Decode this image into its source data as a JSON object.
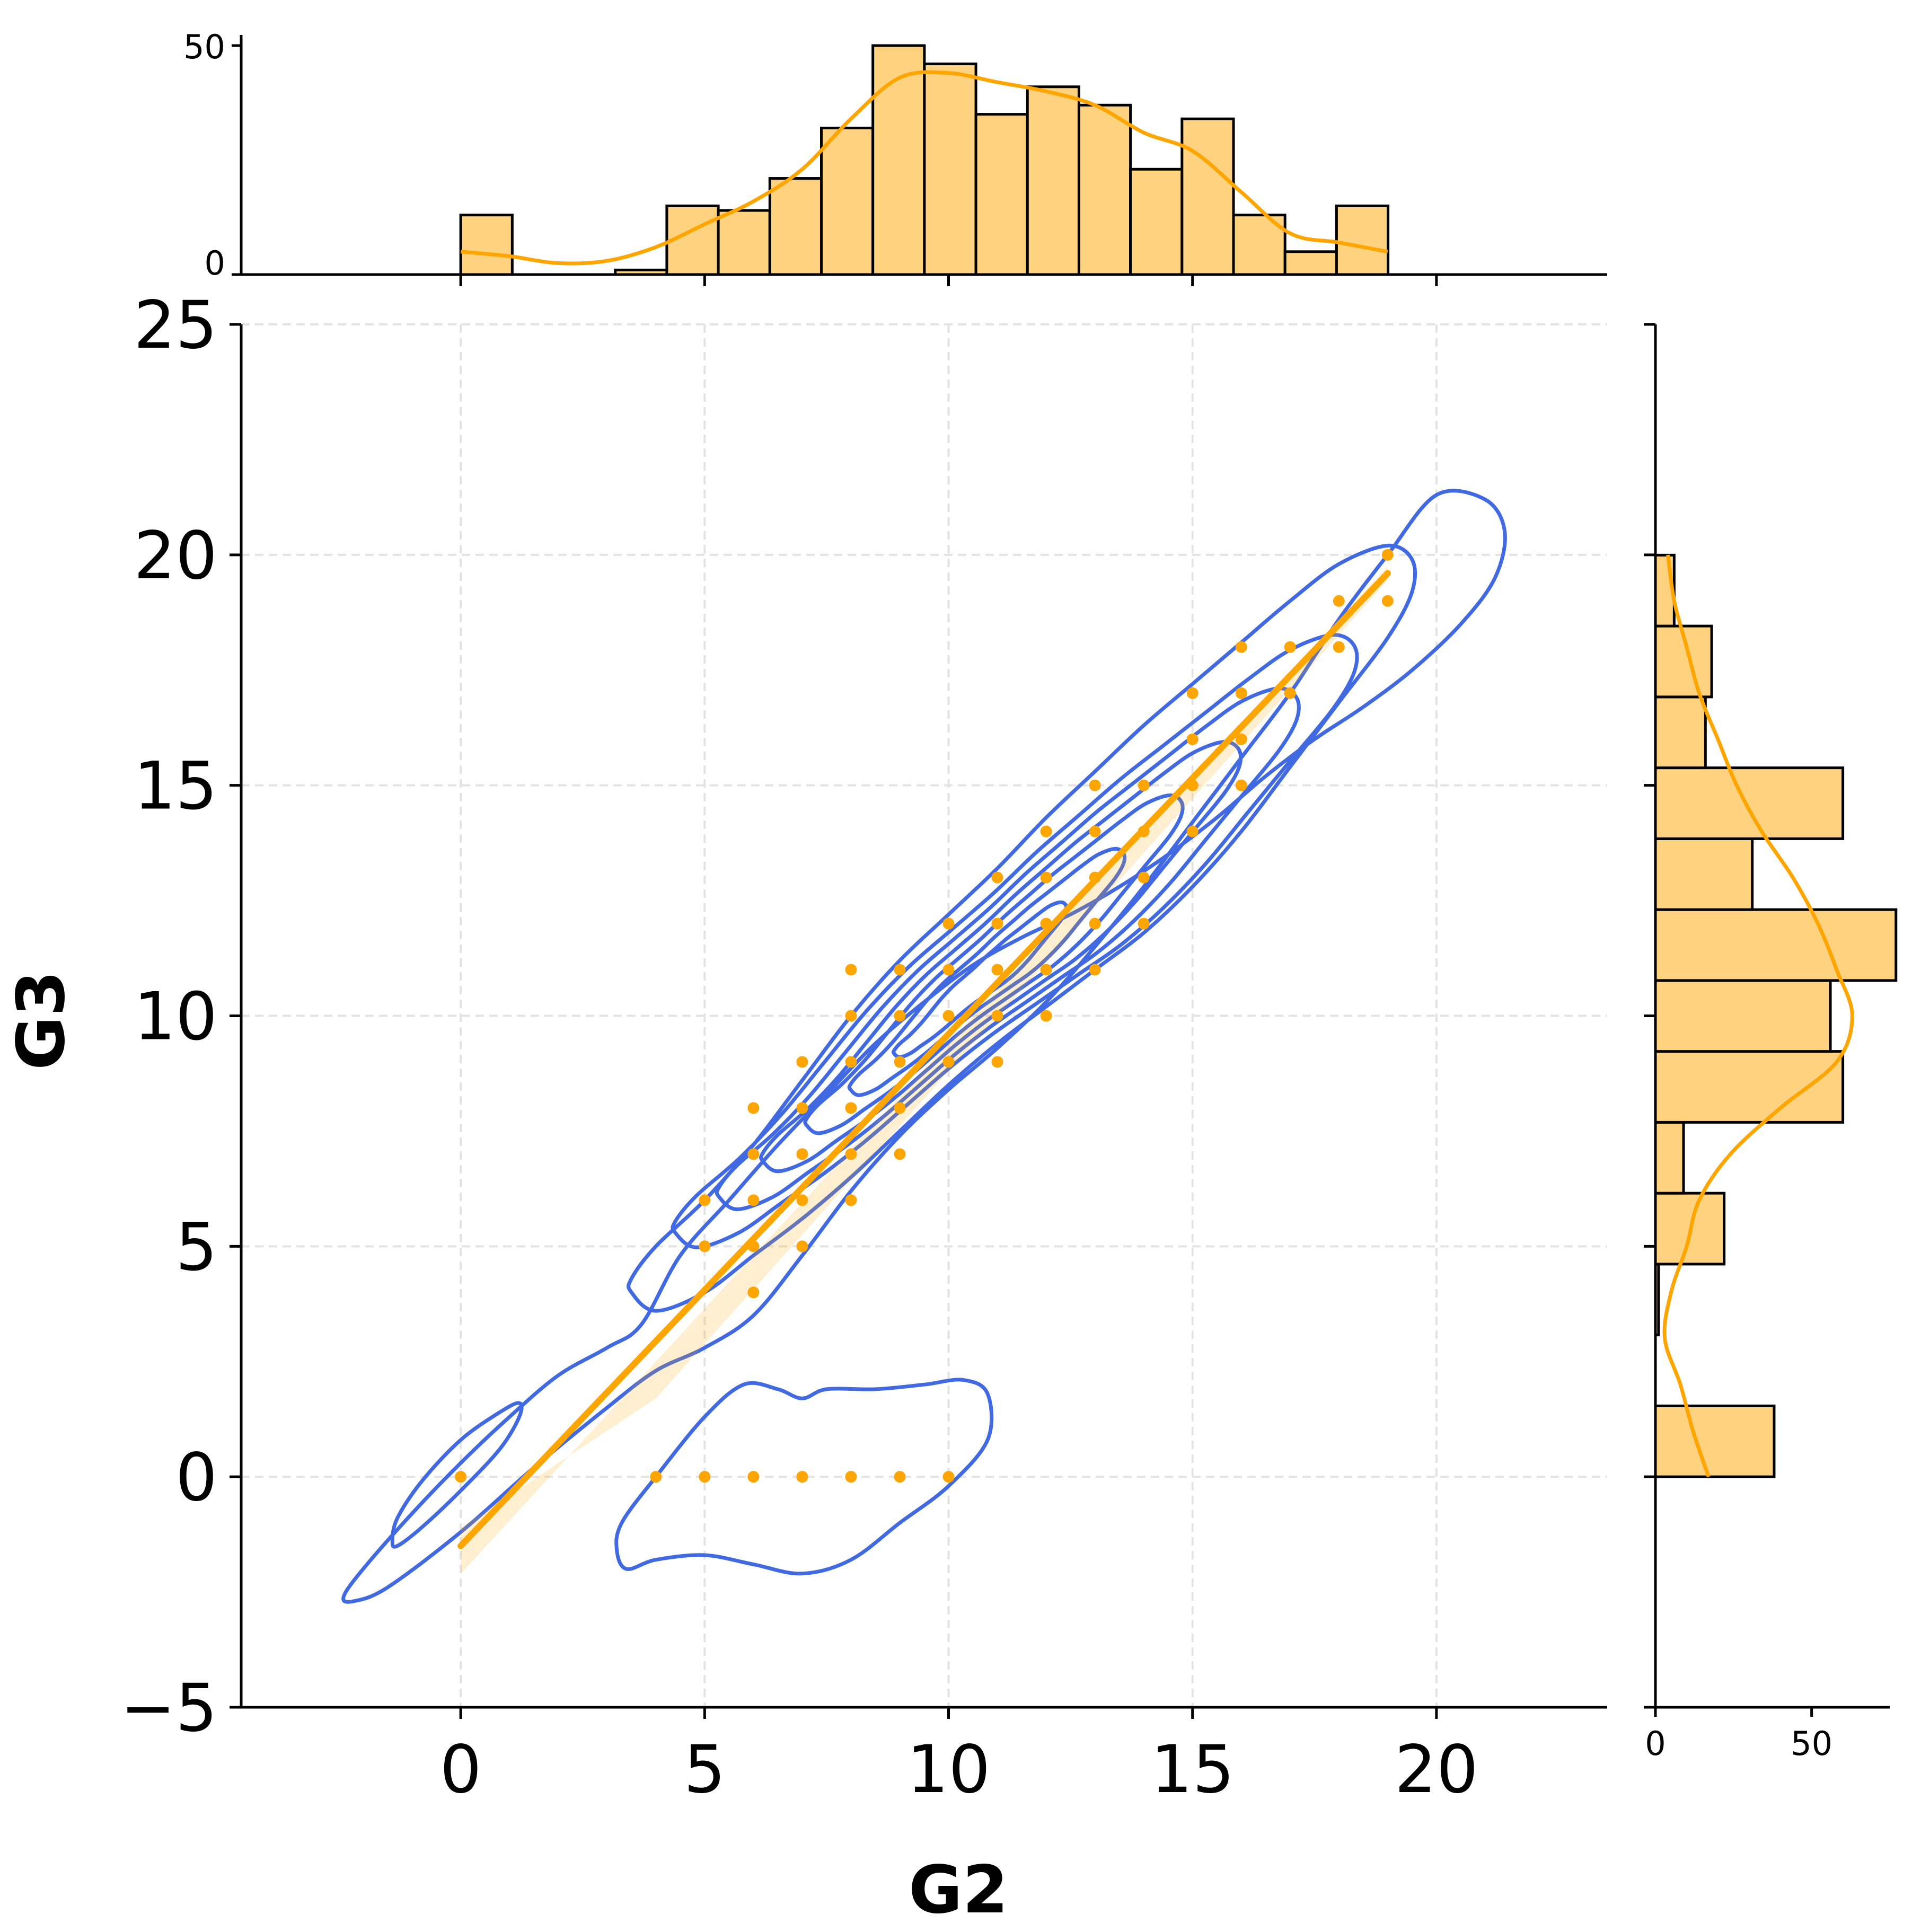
{
  "chart_data": {
    "type": "scatter",
    "title": "",
    "xlabel": "G2",
    "ylabel": "G3",
    "xlim": [
      -4.5,
      23.5
    ],
    "ylim": [
      -5,
      25
    ],
    "x_ticks": [
      0,
      5,
      10,
      15,
      20
    ],
    "y_ticks": [
      -5,
      0,
      5,
      10,
      15,
      20,
      25
    ],
    "grid": true,
    "colors": {
      "points": "#FFA500",
      "regression": "#FFA500",
      "kde_contour": "#4169E1",
      "hist_fill": "#FFD280",
      "hist_edge": "#000000"
    },
    "points": [
      [
        0,
        0
      ],
      [
        4,
        0
      ],
      [
        5,
        0
      ],
      [
        6,
        0
      ],
      [
        7,
        0
      ],
      [
        8,
        0
      ],
      [
        9,
        0
      ],
      [
        10,
        0
      ],
      [
        5,
        5
      ],
      [
        5,
        6
      ],
      [
        6,
        4
      ],
      [
        6,
        5
      ],
      [
        6,
        6
      ],
      [
        6,
        7
      ],
      [
        6,
        8
      ],
      [
        7,
        5
      ],
      [
        7,
        6
      ],
      [
        7,
        7
      ],
      [
        7,
        8
      ],
      [
        7,
        9
      ],
      [
        8,
        6
      ],
      [
        8,
        7
      ],
      [
        8,
        8
      ],
      [
        8,
        9
      ],
      [
        8,
        10
      ],
      [
        8,
        11
      ],
      [
        9,
        7
      ],
      [
        9,
        8
      ],
      [
        9,
        9
      ],
      [
        9,
        10
      ],
      [
        9,
        11
      ],
      [
        10,
        9
      ],
      [
        10,
        10
      ],
      [
        10,
        11
      ],
      [
        10,
        12
      ],
      [
        11,
        9
      ],
      [
        11,
        10
      ],
      [
        11,
        11
      ],
      [
        11,
        12
      ],
      [
        11,
        13
      ],
      [
        12,
        10
      ],
      [
        12,
        11
      ],
      [
        12,
        12
      ],
      [
        12,
        13
      ],
      [
        12,
        14
      ],
      [
        13,
        11
      ],
      [
        13,
        12
      ],
      [
        13,
        13
      ],
      [
        13,
        14
      ],
      [
        13,
        15
      ],
      [
        14,
        12
      ],
      [
        14,
        13
      ],
      [
        14,
        14
      ],
      [
        14,
        15
      ],
      [
        15,
        14
      ],
      [
        15,
        15
      ],
      [
        15,
        16
      ],
      [
        15,
        17
      ],
      [
        16,
        15
      ],
      [
        16,
        16
      ],
      [
        16,
        17
      ],
      [
        16,
        18
      ],
      [
        17,
        17
      ],
      [
        17,
        18
      ],
      [
        18,
        18
      ],
      [
        18,
        19
      ],
      [
        19,
        19
      ],
      [
        19,
        20
      ]
    ],
    "regression": {
      "x": [
        0,
        19
      ],
      "y": [
        -1.5,
        19.6
      ]
    },
    "marginal_x": {
      "xlabel": "",
      "ylim": [
        0,
        50
      ],
      "y_ticks": [
        0,
        50
      ],
      "bin_start": 0,
      "bin_width": 1.056,
      "counts": [
        13,
        0,
        0,
        1,
        15,
        14,
        21,
        32,
        50,
        46,
        35,
        41,
        37,
        23,
        34,
        13,
        5,
        15
      ],
      "kde": [
        [
          0,
          5
        ],
        [
          1,
          4
        ],
        [
          2,
          2.5
        ],
        [
          3,
          3
        ],
        [
          4,
          6
        ],
        [
          5,
          11
        ],
        [
          6,
          16
        ],
        [
          7,
          23
        ],
        [
          8,
          34
        ],
        [
          9,
          43
        ],
        [
          10,
          44
        ],
        [
          11,
          42
        ],
        [
          12,
          40
        ],
        [
          13,
          37
        ],
        [
          14,
          31
        ],
        [
          15,
          27
        ],
        [
          16,
          18
        ],
        [
          17,
          9
        ],
        [
          18,
          7
        ],
        [
          19,
          5
        ]
      ]
    },
    "marginal_y": {
      "ylabel": "",
      "xlim": [
        0,
        75
      ],
      "x_ticks": [
        0,
        50
      ],
      "bin_start": 0,
      "bin_width": 1.538,
      "counts": [
        38,
        0,
        1,
        22,
        9,
        60,
        56,
        77,
        31,
        60,
        16,
        18,
        6
      ],
      "kde": [
        [
          0,
          17
        ],
        [
          1,
          12
        ],
        [
          2,
          8
        ],
        [
          3,
          3
        ],
        [
          4,
          5
        ],
        [
          5,
          10
        ],
        [
          6,
          14
        ],
        [
          7,
          24
        ],
        [
          8,
          40
        ],
        [
          9,
          58
        ],
        [
          10,
          63
        ],
        [
          11,
          58
        ],
        [
          12,
          52
        ],
        [
          13,
          44
        ],
        [
          14,
          34
        ],
        [
          15,
          26
        ],
        [
          16,
          20
        ],
        [
          17,
          14
        ],
        [
          18,
          10
        ],
        [
          19,
          6
        ],
        [
          20,
          4
        ]
      ]
    },
    "kde_contours": [
      [
        [
          -2.2,
          -2.7
        ],
        [
          -1.5,
          -2.4
        ],
        [
          0,
          -1.2
        ],
        [
          1.5,
          0.2
        ],
        [
          3,
          1.5
        ],
        [
          4,
          2.3
        ],
        [
          5,
          2.8
        ],
        [
          6,
          3.5
        ],
        [
          7,
          4.8
        ],
        [
          8,
          6.2
        ],
        [
          9,
          7.4
        ],
        [
          10,
          8.4
        ],
        [
          11,
          9.3
        ],
        [
          12,
          10.3
        ],
        [
          13,
          11.5
        ],
        [
          14,
          12.8
        ],
        [
          15,
          14.2
        ],
        [
          16,
          15.6
        ],
        [
          17,
          17
        ],
        [
          18,
          18.6
        ],
        [
          19,
          20
        ],
        [
          20,
          21.3
        ],
        [
          21,
          21.2
        ],
        [
          21.4,
          20.5
        ],
        [
          21.2,
          19.5
        ],
        [
          20.5,
          18.5
        ],
        [
          19.5,
          17.5
        ],
        [
          18.5,
          16.7
        ],
        [
          17.5,
          16
        ],
        [
          16.5,
          15.2
        ],
        [
          15.5,
          14.3
        ],
        [
          14.5,
          13.5
        ],
        [
          13.5,
          12.8
        ],
        [
          12.5,
          12.2
        ],
        [
          11.5,
          11.7
        ],
        [
          10.5,
          11.1
        ],
        [
          9.5,
          10.3
        ],
        [
          8.5,
          9.4
        ],
        [
          7.5,
          8.3
        ],
        [
          6.5,
          7.2
        ],
        [
          5.5,
          6
        ],
        [
          4.5,
          4.8
        ],
        [
          3.7,
          3.3
        ],
        [
          3,
          2.8
        ],
        [
          2,
          2.2
        ],
        [
          1,
          1.3
        ],
        [
          0,
          0.3
        ],
        [
          -1,
          -0.8
        ],
        [
          -2,
          -2
        ],
        [
          -2.4,
          -2.6
        ],
        [
          -2.2,
          -2.7
        ]
      ],
      [
        [
          -1.3,
          -1.5
        ],
        [
          -0.8,
          -1.1
        ],
        [
          0,
          -0.3
        ],
        [
          0.8,
          0.6
        ],
        [
          1.2,
          1.3
        ],
        [
          1.2,
          1.6
        ],
        [
          0.8,
          1.4
        ],
        [
          0,
          0.8
        ],
        [
          -0.8,
          -0.1
        ],
        [
          -1.3,
          -0.9
        ],
        [
          -1.4,
          -1.4
        ],
        [
          -1.3,
          -1.5
        ]
      ],
      [
        [
          3.4,
          -2
        ],
        [
          4,
          -1.8
        ],
        [
          5,
          -1.7
        ],
        [
          6,
          -1.9
        ],
        [
          7,
          -2.1
        ],
        [
          8,
          -1.8
        ],
        [
          9,
          -1
        ],
        [
          10,
          -0.2
        ],
        [
          10.8,
          0.8
        ],
        [
          10.8,
          1.8
        ],
        [
          10.3,
          2.1
        ],
        [
          9.5,
          2
        ],
        [
          8.5,
          1.9
        ],
        [
          7.5,
          1.9
        ],
        [
          7,
          1.7
        ],
        [
          6.5,
          1.9
        ],
        [
          5.8,
          2
        ],
        [
          5,
          1.3
        ],
        [
          4,
          0
        ],
        [
          3.3,
          -1
        ],
        [
          3.2,
          -1.6
        ],
        [
          3.4,
          -2
        ]
      ],
      [
        [
          3.5,
          4
        ],
        [
          4,
          3.6
        ],
        [
          5,
          4
        ],
        [
          6,
          4.8
        ],
        [
          7,
          5.6
        ],
        [
          8,
          6.5
        ],
        [
          9,
          7.5
        ],
        [
          10,
          8.5
        ],
        [
          11,
          9.4
        ],
        [
          12,
          10.2
        ],
        [
          13,
          11
        ],
        [
          14,
          11.8
        ],
        [
          15,
          12.8
        ],
        [
          16,
          14
        ],
        [
          17,
          15.4
        ],
        [
          18,
          16.8
        ],
        [
          19,
          18.2
        ],
        [
          19.5,
          19.2
        ],
        [
          19.5,
          19.9
        ],
        [
          19,
          20.2
        ],
        [
          18,
          19.8
        ],
        [
          17,
          19
        ],
        [
          16,
          18.1
        ],
        [
          15,
          17.2
        ],
        [
          14,
          16.3
        ],
        [
          13,
          15.3
        ],
        [
          12,
          14.3
        ],
        [
          11,
          13.2
        ],
        [
          10,
          12.2
        ],
        [
          9,
          11.2
        ],
        [
          8,
          10
        ],
        [
          7,
          8.6
        ],
        [
          6,
          7.2
        ],
        [
          5,
          6
        ],
        [
          4,
          5
        ],
        [
          3.5,
          4.3
        ],
        [
          3.5,
          4
        ]
      ]
    ],
    "kde_center": [
      10.4,
      10.5
    ],
    "kde_inner_count": 6
  }
}
